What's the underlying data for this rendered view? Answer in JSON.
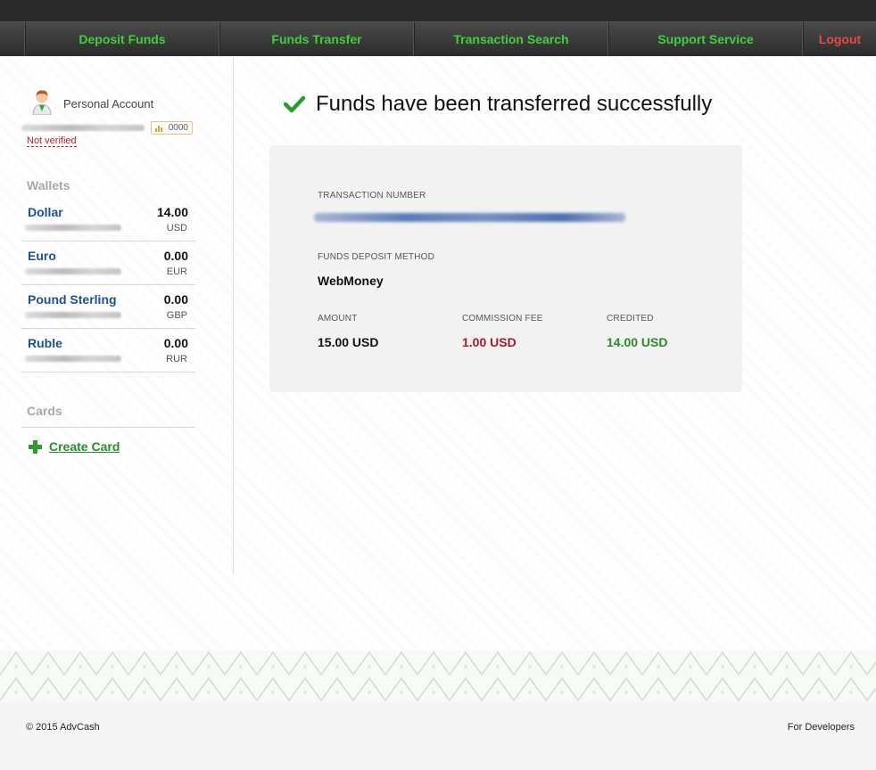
{
  "nav": {
    "deposit": "Deposit Funds",
    "transfer": "Funds Transfer",
    "search": "Transaction Search",
    "support": "Support Service",
    "logout": "Logout"
  },
  "account": {
    "label": "Personal Account",
    "rating": "0000",
    "status": "Not verified"
  },
  "wallets": {
    "title": "Wallets",
    "items": [
      {
        "name": "Dollar",
        "amount": "14.00",
        "currency": "USD"
      },
      {
        "name": "Euro",
        "amount": "0.00",
        "currency": "EUR"
      },
      {
        "name": "Pound Sterling",
        "amount": "0.00",
        "currency": "GBP"
      },
      {
        "name": "Ruble",
        "amount": "0.00",
        "currency": "RUR"
      }
    ]
  },
  "cards": {
    "title": "Cards",
    "create": "Create Card"
  },
  "result": {
    "message": "Funds have been transferred successfully",
    "txn_label": "TRANSACTION NUMBER",
    "method_label": "FUNDS DEPOSIT METHOD",
    "method_value": "WebMoney",
    "amount_label": "AMOUNT",
    "amount_value": "15.00 USD",
    "fee_label": "COMMISSION FEE",
    "fee_value": "1.00 USD",
    "credited_label": "CREDITED",
    "credited_value": "14.00 USD"
  },
  "footer": {
    "copyright": "© 2015 AdvCash",
    "developers": "For Developers"
  },
  "colors": {
    "nav_green": "#3fcf3f",
    "logout_red": "#e84848",
    "wallet_blue": "#1f4f8f",
    "fee_red": "#a01c2a",
    "credited_green": "#2b8a2b"
  }
}
